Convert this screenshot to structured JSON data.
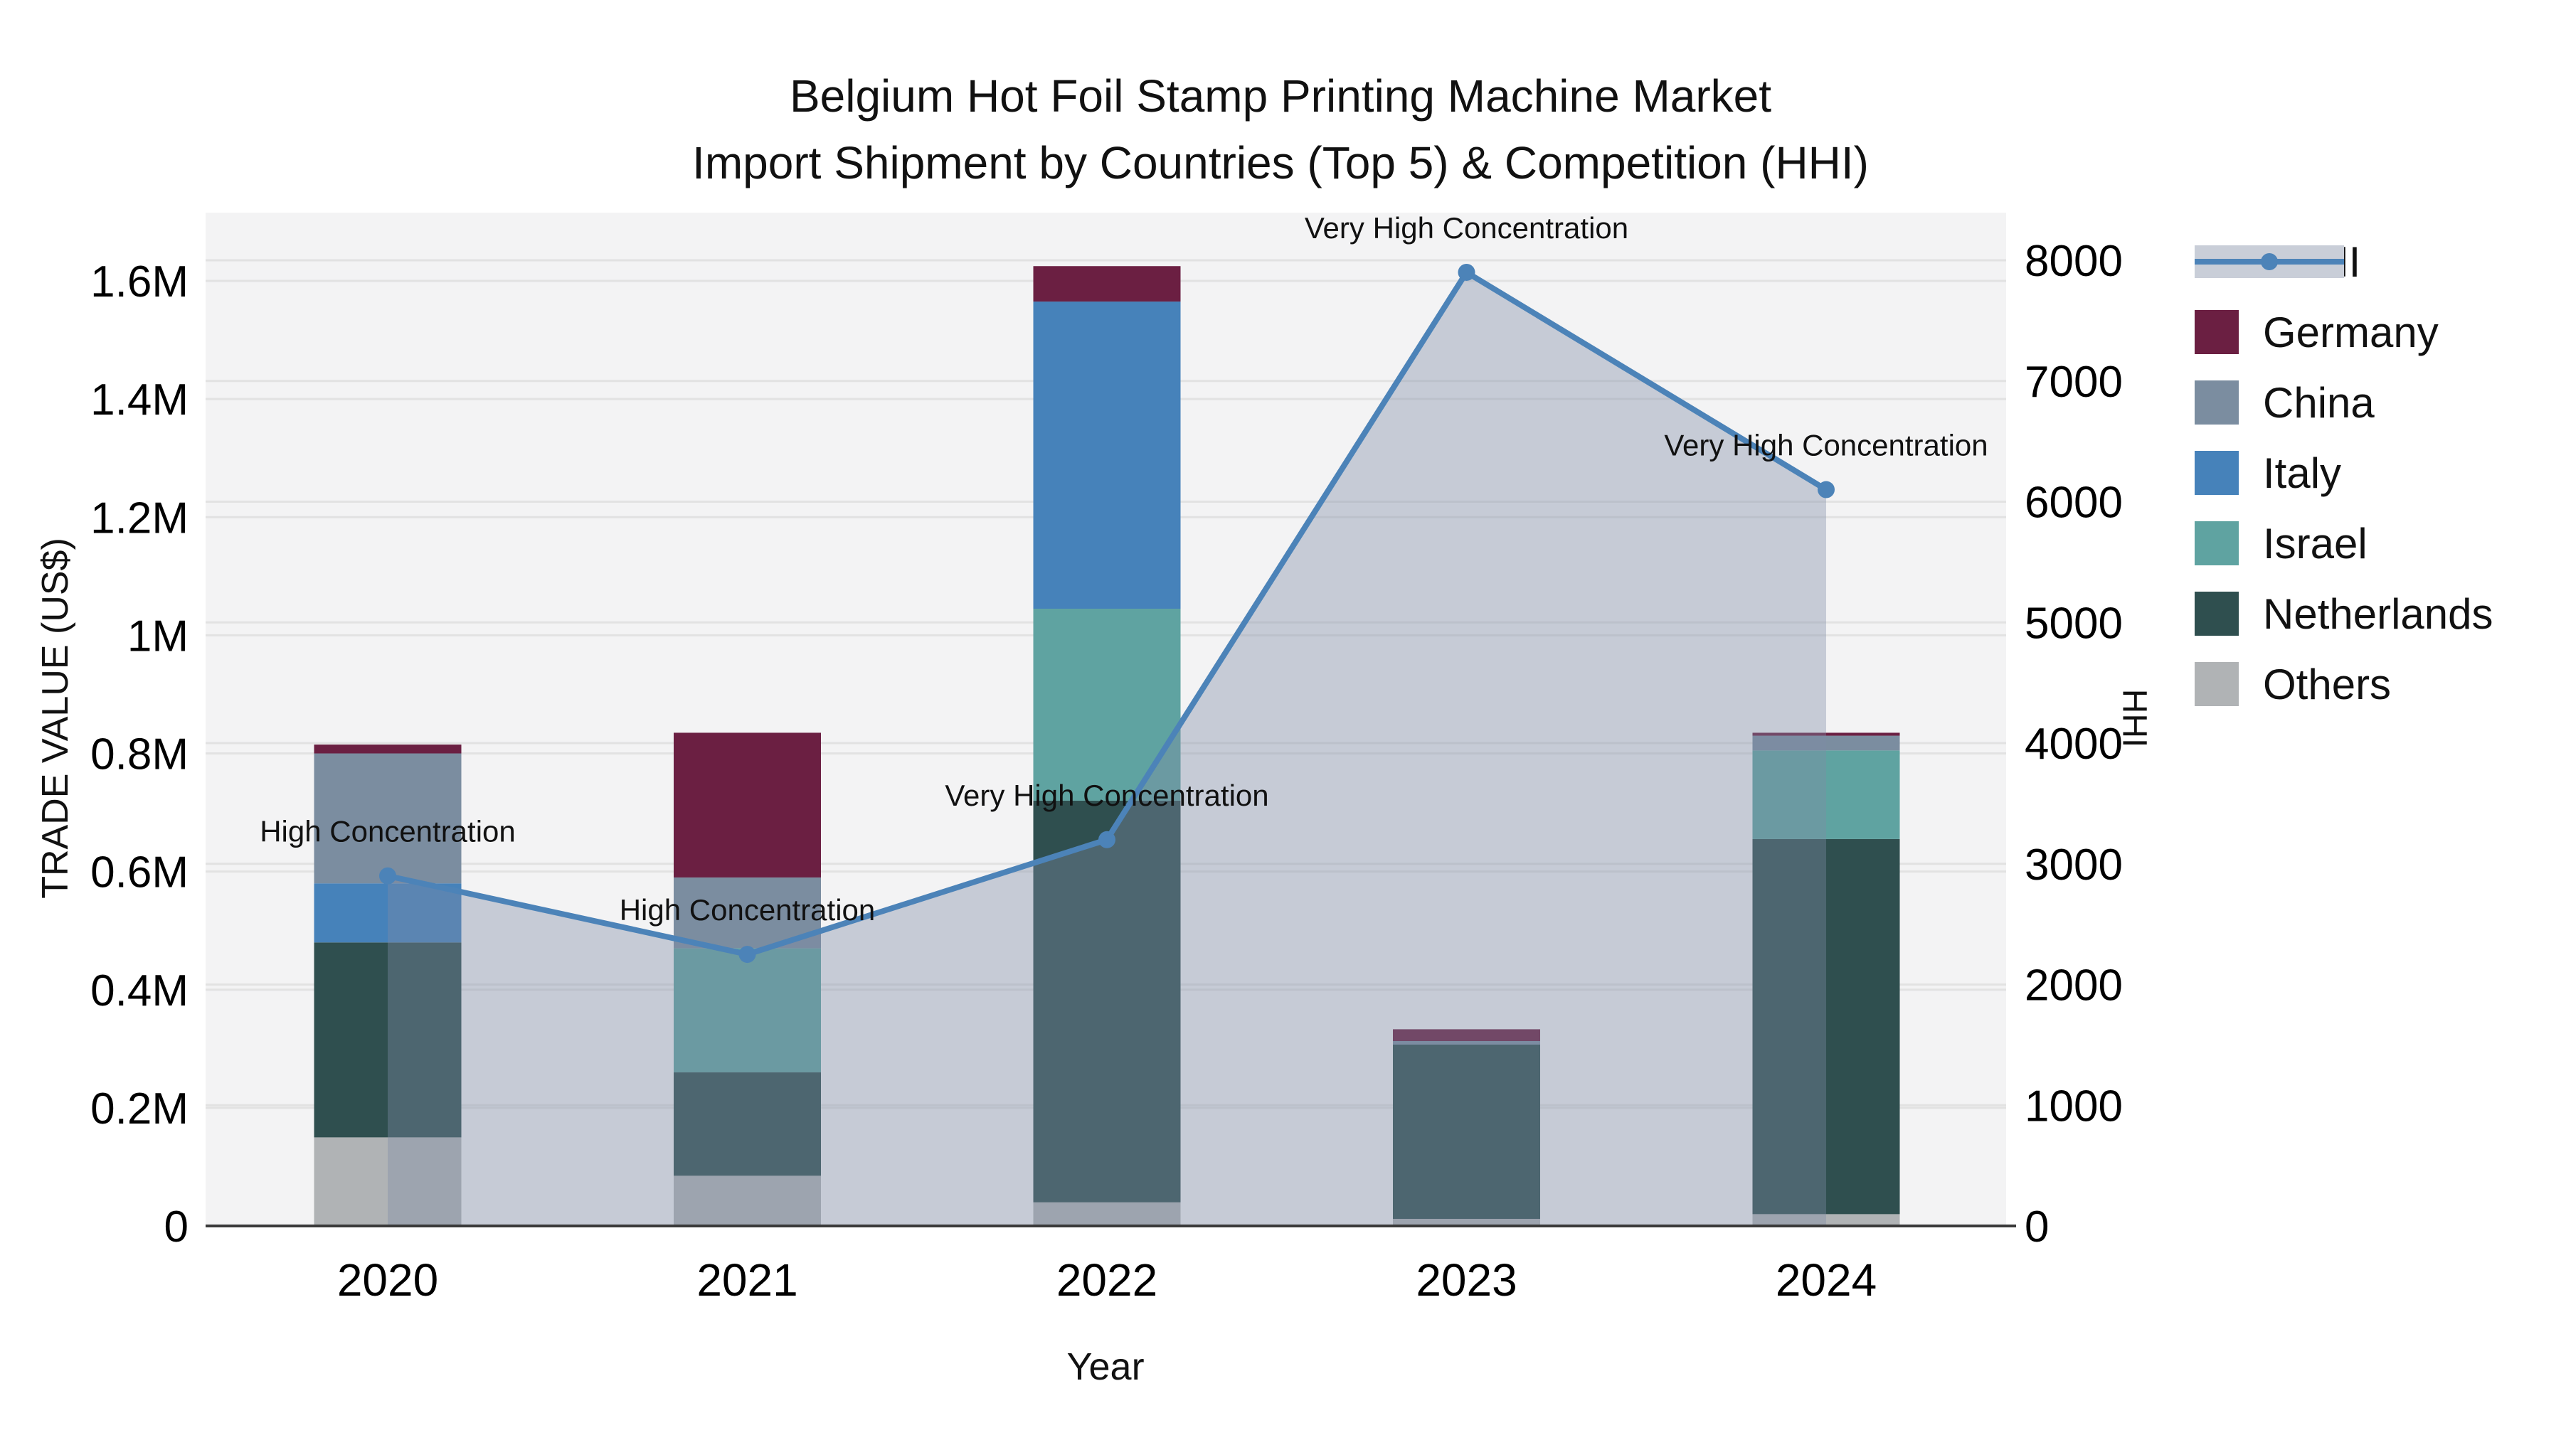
{
  "title": {
    "line1": "Belgium Hot Foil Stamp Printing Machine Market",
    "line2": "Import Shipment by Countries (Top 5) & Competition (HHI)"
  },
  "axes": {
    "left": {
      "title": "TRADE VALUE (US$)",
      "ticks": [
        "0",
        "0.2M",
        "0.4M",
        "0.6M",
        "0.8M",
        "1M",
        "1.2M",
        "1.4M",
        "1.6M"
      ]
    },
    "right": {
      "title": "HHI",
      "ticks": [
        "0",
        "1000",
        "2000",
        "3000",
        "4000",
        "5000",
        "6000",
        "7000",
        "8000"
      ]
    },
    "x": {
      "title": "Year"
    }
  },
  "legend": [
    {
      "label": "HHI",
      "type": "line",
      "color": "#4c83b8"
    },
    {
      "label": "Germany",
      "type": "swatch",
      "color": "#6b1f42"
    },
    {
      "label": "China",
      "type": "swatch",
      "color": "#7b8da0"
    },
    {
      "label": "Italy",
      "type": "swatch",
      "color": "#4682ba"
    },
    {
      "label": "Israel",
      "type": "swatch",
      "color": "#5fa3a1"
    },
    {
      "label": "Netherlands",
      "type": "swatch",
      "color": "#2f4f4f"
    },
    {
      "label": "Others",
      "type": "swatch",
      "color": "#b0b3b5"
    }
  ],
  "chart_data": {
    "type": "bar+line dual-axis (stacked bars left axis, HHI line right axis)",
    "categories": [
      "2020",
      "2021",
      "2022",
      "2023",
      "2024"
    ],
    "value_unit": "US$",
    "stack_order_bottom_to_top": [
      "Others",
      "Netherlands",
      "Israel",
      "Italy",
      "China",
      "Germany"
    ],
    "bar_series": [
      {
        "name": "Others",
        "color": "#b0b3b5",
        "values": [
          150000,
          85000,
          40000,
          12000,
          20000
        ]
      },
      {
        "name": "Netherlands",
        "color": "#2f4f4f",
        "values": [
          330000,
          175000,
          680000,
          295000,
          635000
        ]
      },
      {
        "name": "Israel",
        "color": "#5fa3a1",
        "values": [
          0,
          210000,
          325000,
          0,
          150000
        ]
      },
      {
        "name": "Italy",
        "color": "#4682ba",
        "values": [
          100000,
          0,
          520000,
          0,
          0
        ]
      },
      {
        "name": "China",
        "color": "#7b8da0",
        "values": [
          220000,
          120000,
          0,
          6000,
          25000
        ]
      },
      {
        "name": "Germany",
        "color": "#6b1f42",
        "values": [
          15000,
          245000,
          60000,
          20000,
          5000
        ]
      }
    ],
    "line_series": {
      "name": "HHI",
      "color": "#4c83b8",
      "fill": "rgba(125,140,165,0.38)",
      "values": [
        2900,
        2250,
        3200,
        7900,
        6100
      ]
    },
    "annotations": [
      "High Concentration",
      "High Concentration",
      "Very High Concentration",
      "Very High Concentration",
      "Very High Concentration"
    ],
    "title": "Belgium Hot Foil Stamp Printing Machine Market Import Shipment by Countries (Top 5) & Competition (HHI)",
    "xlabel": "Year",
    "ylabel_left": "TRADE VALUE (US$)",
    "ylabel_right": "HHI",
    "ylim_left": [
      0,
      1600000
    ],
    "ylim_right": [
      0,
      8000
    ],
    "grid": true,
    "legend_position": "right",
    "plot_bg": "#f3f3f4",
    "grid_color": "#e2e2e2",
    "axis_line_color": "#3a3a3a"
  }
}
